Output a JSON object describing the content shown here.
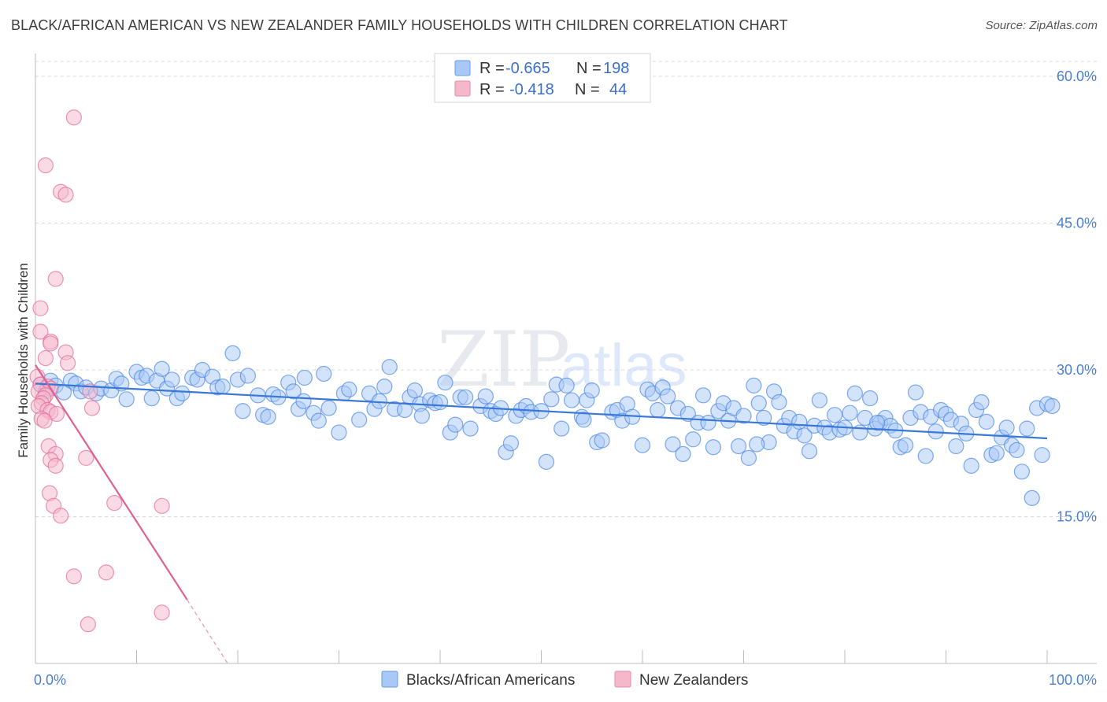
{
  "title": "BLACK/AFRICAN AMERICAN VS NEW ZEALANDER FAMILY HOUSEHOLDS WITH CHILDREN CORRELATION CHART",
  "source": "Source: ZipAtlas.com",
  "watermark": {
    "zip": "ZIP",
    "atlas": "atlas"
  },
  "legend": {
    "rows": [
      {
        "r_label": "R =",
        "r_value": "-0.665",
        "n_label": "N =",
        "n_value": "198",
        "color": "#a8c8f5"
      },
      {
        "r_label": "R =",
        "r_value": "-0.418",
        "n_label": "N =",
        "n_value": "44",
        "color": "#f5b8cb"
      }
    ]
  },
  "bottom_legend": [
    {
      "label": "Blacks/African Americans",
      "color": "#a8c8f5"
    },
    {
      "label": "New Zealanders",
      "color": "#f5b8cb"
    }
  ],
  "chart_data": {
    "type": "scatter",
    "title": "BLACK/AFRICAN AMERICAN VS NEW ZEALANDER FAMILY HOUSEHOLDS WITH CHILDREN CORRELATION CHART",
    "xlabel": "",
    "ylabel": "Family Households with Children",
    "xlim": [
      0,
      100
    ],
    "ylim": [
      0,
      60
    ],
    "x_tick_labels": [
      "0.0%",
      "100.0%"
    ],
    "y_ticks": [
      15,
      30,
      45,
      60
    ],
    "y_tick_labels": [
      "15.0%",
      "30.0%",
      "45.0%",
      "60.0%"
    ],
    "grid": true,
    "series": [
      {
        "name": "Blacks/African Americans",
        "color": "#4a86e8",
        "fill": "#a8c8f5",
        "trend": {
          "x0": 0,
          "y0": 28.6,
          "x1": 100,
          "y1": 23.0
        },
        "points": [
          [
            0.5,
            28.5
          ],
          [
            1,
            27.8
          ],
          [
            1.5,
            28.9
          ],
          [
            2,
            28.4
          ],
          [
            2.8,
            27.7
          ],
          [
            3.5,
            28.9
          ],
          [
            4,
            28.6
          ],
          [
            4.5,
            27.8
          ],
          [
            5,
            28.2
          ],
          [
            6,
            27.6
          ],
          [
            6.5,
            28.1
          ],
          [
            7.5,
            27.9
          ],
          [
            8,
            29.1
          ],
          [
            8.5,
            28.6
          ],
          [
            9,
            27
          ],
          [
            10,
            29.8
          ],
          [
            10.5,
            29.2
          ],
          [
            11,
            29.4
          ],
          [
            11.5,
            27.1
          ],
          [
            12,
            28.9
          ],
          [
            12.5,
            30.1
          ],
          [
            13,
            28.1
          ],
          [
            13.5,
            29
          ],
          [
            14,
            27.1
          ],
          [
            14.5,
            27.6
          ],
          [
            15.5,
            29.2
          ],
          [
            16,
            29
          ],
          [
            16.5,
            30
          ],
          [
            17.5,
            29.3
          ],
          [
            18,
            28.2
          ],
          [
            18.5,
            28.3
          ],
          [
            19.5,
            31.7
          ],
          [
            20,
            29
          ],
          [
            21,
            29.4
          ],
          [
            20.5,
            25.8
          ],
          [
            22,
            27.4
          ],
          [
            22.5,
            25.4
          ],
          [
            23,
            25.2
          ],
          [
            23.5,
            27.5
          ],
          [
            24,
            27.2
          ],
          [
            25,
            28.7
          ],
          [
            25.5,
            27.8
          ],
          [
            26,
            26
          ],
          [
            26.5,
            26.8
          ],
          [
            27.5,
            25.6
          ],
          [
            28,
            24.8
          ],
          [
            28.5,
            29.6
          ],
          [
            29,
            26.1
          ],
          [
            30,
            23.6
          ],
          [
            30.5,
            27.6
          ],
          [
            31,
            28
          ],
          [
            32,
            24.9
          ],
          [
            33,
            27.6
          ],
          [
            33.5,
            26
          ],
          [
            34,
            26.8
          ],
          [
            34.5,
            28.3
          ],
          [
            35,
            30.3
          ],
          [
            35.5,
            26
          ],
          [
            36.5,
            25.9
          ],
          [
            37,
            27.2
          ],
          [
            37.5,
            27.9
          ],
          [
            38,
            26.5
          ],
          [
            39,
            26.9
          ],
          [
            39.5,
            26.6
          ],
          [
            40,
            26.7
          ],
          [
            40.5,
            28.7
          ],
          [
            41,
            23.6
          ],
          [
            41.5,
            24.4
          ],
          [
            42,
            27.2
          ],
          [
            42.5,
            27.2
          ],
          [
            43,
            24
          ],
          [
            44,
            26.3
          ],
          [
            44.5,
            27.3
          ],
          [
            45,
            25.8
          ],
          [
            45.5,
            25.5
          ],
          [
            46,
            26.1
          ],
          [
            46.5,
            21.6
          ],
          [
            47,
            22.5
          ],
          [
            47.5,
            25.3
          ],
          [
            48,
            25.9
          ],
          [
            48.5,
            26.3
          ],
          [
            49,
            25.7
          ],
          [
            50,
            25.8
          ],
          [
            50.5,
            20.6
          ],
          [
            51,
            27
          ],
          [
            51.5,
            28.5
          ],
          [
            52,
            24
          ],
          [
            52.5,
            28.4
          ],
          [
            53,
            26.9
          ],
          [
            54,
            25.2
          ],
          [
            54.5,
            26.9
          ],
          [
            55,
            27.9
          ],
          [
            55.5,
            22.6
          ],
          [
            56,
            22.8
          ],
          [
            57,
            25.7
          ],
          [
            57.5,
            25.9
          ],
          [
            58,
            24.8
          ],
          [
            58.5,
            26.5
          ],
          [
            59,
            25.2
          ],
          [
            60,
            22.3
          ],
          [
            60.5,
            28
          ],
          [
            61,
            27.6
          ],
          [
            61.5,
            25.9
          ],
          [
            62,
            28.2
          ],
          [
            62.5,
            27.3
          ],
          [
            63,
            22.4
          ],
          [
            63.5,
            26.1
          ],
          [
            64,
            21.4
          ],
          [
            64.5,
            25.5
          ],
          [
            65,
            22.9
          ],
          [
            65.5,
            24.6
          ],
          [
            66,
            27.4
          ],
          [
            66.5,
            24.6
          ],
          [
            67,
            22.1
          ],
          [
            67.5,
            25.8
          ],
          [
            68,
            26.6
          ],
          [
            68.5,
            24.8
          ],
          [
            69,
            26.1
          ],
          [
            69.5,
            22.2
          ],
          [
            70,
            25.3
          ],
          [
            70.5,
            21
          ],
          [
            71,
            28.4
          ],
          [
            71.5,
            26.6
          ],
          [
            72,
            25.1
          ],
          [
            72.5,
            22.6
          ],
          [
            73,
            27.8
          ],
          [
            73.5,
            26.7
          ],
          [
            74,
            24.3
          ],
          [
            74.5,
            25.1
          ],
          [
            75,
            23.7
          ],
          [
            75.5,
            24.7
          ],
          [
            76,
            23.3
          ],
          [
            76.5,
            21.7
          ],
          [
            77,
            24.3
          ],
          [
            77.5,
            26.9
          ],
          [
            78,
            24.1
          ],
          [
            78.5,
            23.6
          ],
          [
            79,
            25.4
          ],
          [
            79.5,
            23.9
          ],
          [
            80,
            24.1
          ],
          [
            80.5,
            25.6
          ],
          [
            81,
            27.6
          ],
          [
            81.5,
            23.6
          ],
          [
            82,
            25.1
          ],
          [
            82.5,
            27.1
          ],
          [
            83,
            24
          ],
          [
            83.5,
            24.6
          ],
          [
            84,
            25.1
          ],
          [
            84.5,
            24.3
          ],
          [
            85,
            23.8
          ],
          [
            85.5,
            22.1
          ],
          [
            86,
            22.3
          ],
          [
            86.5,
            25.1
          ],
          [
            87,
            27.7
          ],
          [
            87.5,
            25.7
          ],
          [
            88,
            21.2
          ],
          [
            88.5,
            25.2
          ],
          [
            89,
            23.7
          ],
          [
            89.5,
            25.9
          ],
          [
            90,
            25.5
          ],
          [
            90.5,
            24.9
          ],
          [
            91,
            22.2
          ],
          [
            91.5,
            24.5
          ],
          [
            92,
            23.5
          ],
          [
            92.5,
            20.2
          ],
          [
            93,
            25.9
          ],
          [
            93.5,
            26.7
          ],
          [
            94,
            24.7
          ],
          [
            94.5,
            21.3
          ],
          [
            95,
            21.5
          ],
          [
            95.5,
            23.1
          ],
          [
            96,
            24.1
          ],
          [
            96.5,
            22.3
          ],
          [
            97,
            21.8
          ],
          [
            97.5,
            19.6
          ],
          [
            98,
            24
          ],
          [
            98.5,
            16.9
          ],
          [
            99,
            26.1
          ],
          [
            99.5,
            21.3
          ],
          [
            100,
            26.5
          ],
          [
            100.5,
            26.3
          ],
          [
            26.6,
            29.2
          ],
          [
            38.2,
            25.3
          ],
          [
            54.2,
            24.9
          ],
          [
            71.3,
            22.4
          ],
          [
            83.2,
            24.6
          ]
        ]
      },
      {
        "name": "New Zealanders",
        "color": "#e26b9a",
        "fill": "#f5b8cb",
        "trend": {
          "x0": 0,
          "y0": 30.5,
          "x1": 15,
          "y1": 6.5,
          "dash_to": {
            "x": 19,
            "y": 0
          }
        },
        "points": [
          [
            3.8,
            55.8
          ],
          [
            1,
            50.9
          ],
          [
            2.5,
            48.2
          ],
          [
            3,
            47.9
          ],
          [
            2,
            39.3
          ],
          [
            0.5,
            36.3
          ],
          [
            0.5,
            33.9
          ],
          [
            1.5,
            32.9
          ],
          [
            1.5,
            32.7
          ],
          [
            3,
            31.8
          ],
          [
            1,
            31.2
          ],
          [
            3.2,
            30.7
          ],
          [
            0.2,
            29.3
          ],
          [
            0.5,
            28.5
          ],
          [
            1.2,
            28.3
          ],
          [
            1.5,
            28.1
          ],
          [
            0.3,
            27.8
          ],
          [
            1,
            27.4
          ],
          [
            0.8,
            27.1
          ],
          [
            0.6,
            26.6
          ],
          [
            0.3,
            26.3
          ],
          [
            1.2,
            25.9
          ],
          [
            1.5,
            25.7
          ],
          [
            2.1,
            25.5
          ],
          [
            0.6,
            25.0
          ],
          [
            0.9,
            24.8
          ],
          [
            5.4,
            27.8
          ],
          [
            5.6,
            26.1
          ],
          [
            1.3,
            22.2
          ],
          [
            2,
            21.4
          ],
          [
            1.5,
            20.8
          ],
          [
            2,
            20.2
          ],
          [
            5,
            21
          ],
          [
            1.4,
            17.4
          ],
          [
            1.8,
            16.1
          ],
          [
            7.8,
            16.4
          ],
          [
            12.5,
            16.1
          ],
          [
            2.5,
            15.1
          ],
          [
            3.8,
            8.9
          ],
          [
            7,
            9.3
          ],
          [
            12.5,
            5.2
          ],
          [
            5.2,
            4
          ]
        ]
      }
    ]
  }
}
